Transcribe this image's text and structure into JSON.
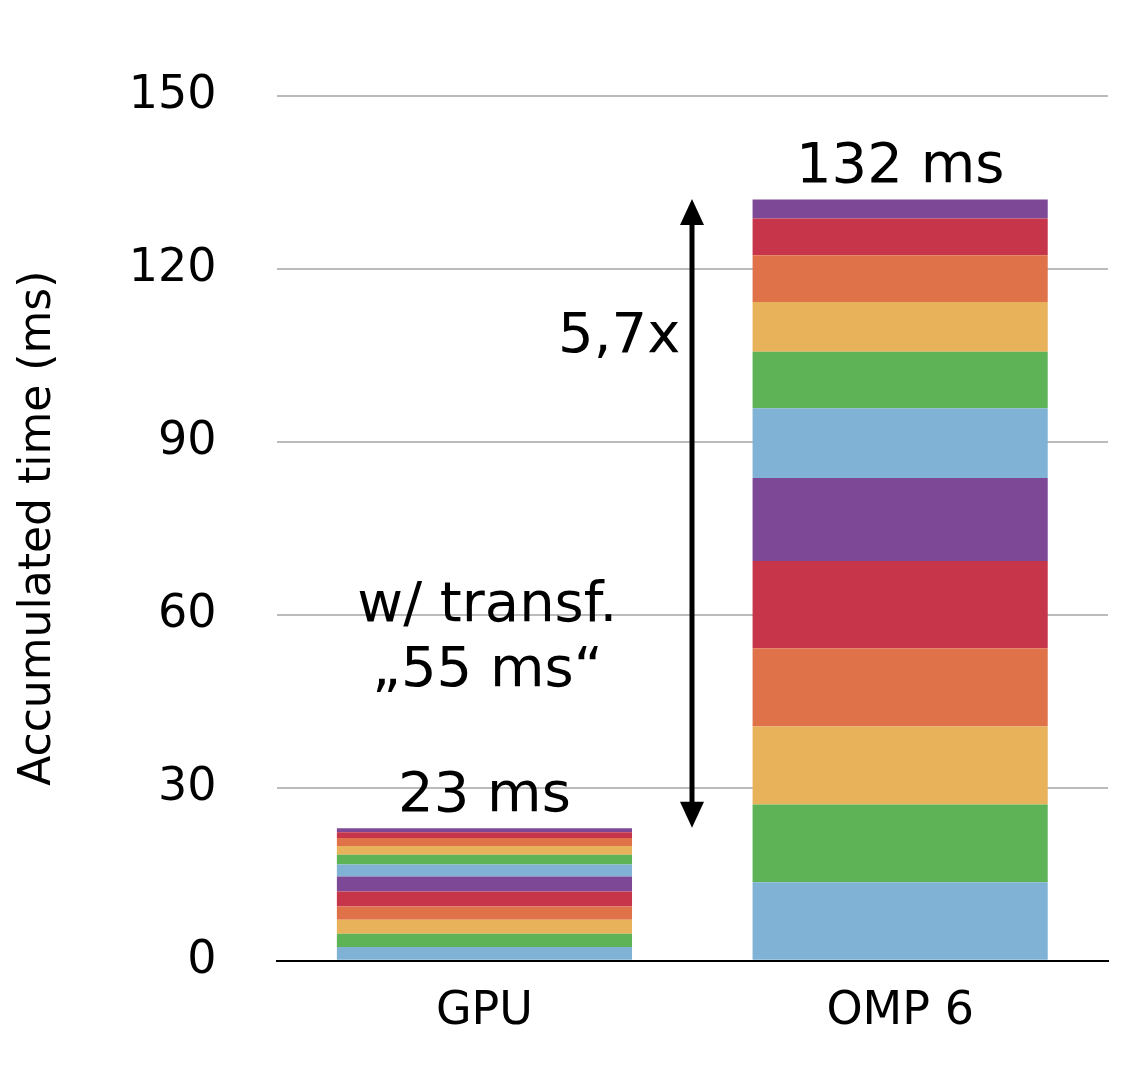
{
  "chart_data": {
    "type": "bar",
    "stacked": true,
    "categories": [
      "GPU",
      "OMP 6"
    ],
    "series": [
      {
        "color": "#7fb2d4",
        "values": [
          2.4,
          13.6
        ]
      },
      {
        "color": "#5db356",
        "values": [
          2.3,
          13.5
        ]
      },
      {
        "color": "#e8b25a",
        "values": [
          2.4,
          13.5
        ]
      },
      {
        "color": "#e0724a",
        "values": [
          2.3,
          13.6
        ]
      },
      {
        "color": "#c7354a",
        "values": [
          2.6,
          15.1
        ]
      },
      {
        "color": "#7d4996",
        "values": [
          2.6,
          14.4
        ]
      },
      {
        "color": "#7fb2d4",
        "values": [
          2.1,
          12.1
        ]
      },
      {
        "color": "#5db356",
        "values": [
          1.7,
          9.8
        ]
      },
      {
        "color": "#e8b25a",
        "values": [
          1.5,
          8.6
        ]
      },
      {
        "color": "#e0724a",
        "values": [
          1.4,
          8.1
        ]
      },
      {
        "color": "#c7354a",
        "values": [
          1.0,
          6.4
        ]
      },
      {
        "color": "#7d4996",
        "values": [
          0.7,
          3.3
        ]
      }
    ],
    "ylim": [
      0,
      150
    ],
    "yticks": [
      0,
      30,
      60,
      90,
      120,
      150
    ],
    "ylabel": "Accumulated time (ms)",
    "grid": "y",
    "totals": [
      "23 ms",
      "132 ms"
    ],
    "annotations": [
      "5,7x",
      "w/ transf.",
      "„55 ms“"
    ]
  }
}
